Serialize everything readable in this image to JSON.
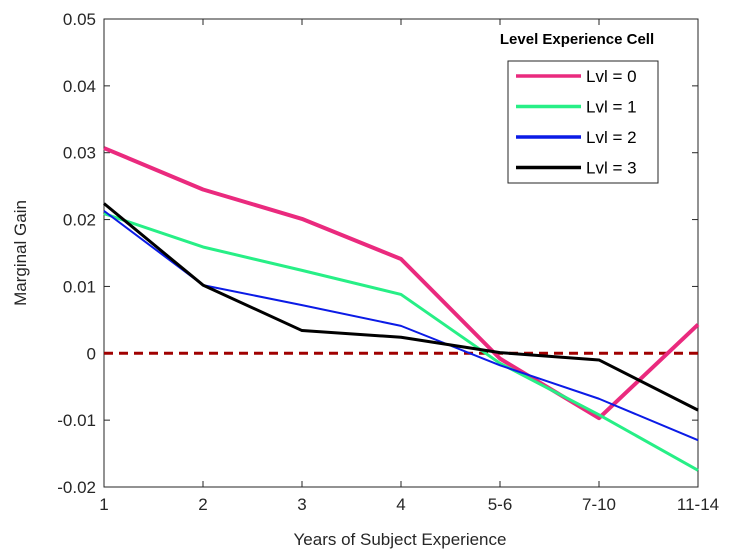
{
  "chart_data": {
    "type": "line",
    "categories": [
      "1",
      "2",
      "3",
      "4",
      "5-6",
      "7-10",
      "11-14"
    ],
    "xlabel": "Years of Subject Experience",
    "ylabel": "Marginal Gain",
    "ylim": [
      -0.02,
      0.05
    ],
    "yticks": [
      0.05,
      0.04,
      0.03,
      0.02,
      0.01,
      0,
      -0.01,
      -0.02
    ],
    "ytick_labels": [
      "0.05",
      "0.04",
      "0.03",
      "0.02",
      "0.01",
      "0",
      "-0.01",
      "-0.02"
    ],
    "legend": {
      "title": "Level Experience Cell",
      "placement": "top-right"
    },
    "reference_line": {
      "y": 0,
      "color": "#a00000",
      "style": "dashed"
    },
    "series": [
      {
        "name": "Lvl = 0",
        "color": "#ea2a7e",
        "values": [
          0.0307,
          0.0245,
          0.0201,
          0.0141,
          -0.0008,
          -0.0097,
          0.0043
        ]
      },
      {
        "name": "Lvl = 1",
        "color": "#27ef86",
        "values": [
          0.0209,
          0.0159,
          0.0124,
          0.0088,
          -0.0015,
          -0.0092,
          -0.0175
        ]
      },
      {
        "name": "Lvl = 2",
        "color": "#0b1be6",
        "values": [
          0.0213,
          0.0102,
          0.0072,
          0.0041,
          -0.0018,
          -0.0068,
          -0.013
        ]
      },
      {
        "name": "Lvl = 3",
        "color": "#000000",
        "values": [
          0.0224,
          0.0102,
          0.0034,
          0.0024,
          0.0001,
          -0.001,
          -0.0085
        ]
      }
    ]
  }
}
